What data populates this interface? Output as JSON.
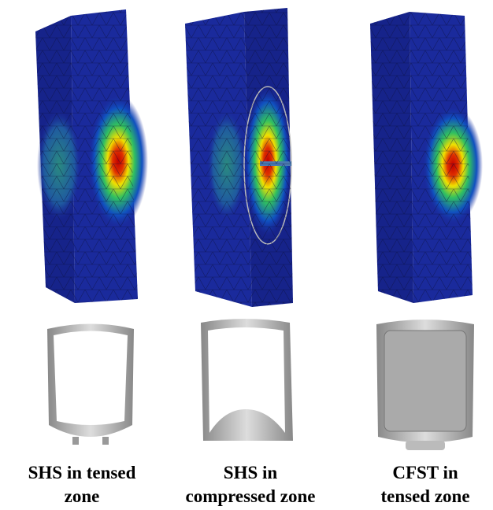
{
  "panels": [
    {
      "caption": [
        "SHS in tensed",
        "zone"
      ]
    },
    {
      "caption": [
        "SHS in",
        "compressed zone"
      ]
    },
    {
      "caption": [
        "CFST in",
        "tensed zone"
      ]
    }
  ]
}
